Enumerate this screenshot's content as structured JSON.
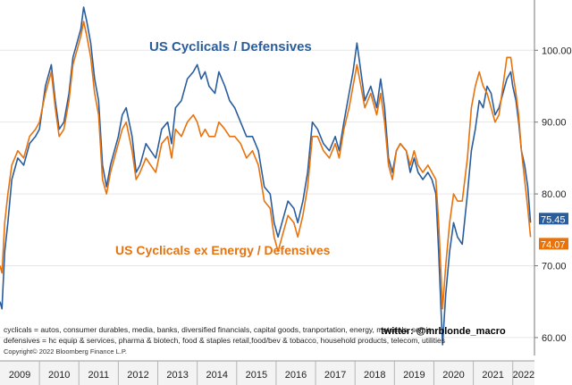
{
  "chart_data": {
    "type": "line",
    "annotation_top": "US Cyclicals / Defensives",
    "annotation_bottom": "US Cyclicals ex Energy / Defensives",
    "x_labels": [
      "2009",
      "2010",
      "2011",
      "2012",
      "2013",
      "2014",
      "2015",
      "2016",
      "2017",
      "2018",
      "2019",
      "2020",
      "2021",
      "2022"
    ],
    "y_ticks": [
      "60.00",
      "70.00",
      "80.00",
      "90.00",
      "100.00"
    ],
    "ylim": [
      57.5,
      107
    ],
    "xlim": [
      2009.0,
      2022.55
    ],
    "series": [
      {
        "name": "US Cyclicals / Defensives",
        "color": "#2a5d9c",
        "last_value_label": "75.45",
        "points": [
          [
            2009.0,
            65
          ],
          [
            2009.05,
            64
          ],
          [
            2009.12,
            72
          ],
          [
            2009.2,
            76
          ],
          [
            2009.3,
            82
          ],
          [
            2009.45,
            85
          ],
          [
            2009.6,
            84
          ],
          [
            2009.75,
            87
          ],
          [
            2009.9,
            88
          ],
          [
            2010.0,
            89
          ],
          [
            2010.15,
            95
          ],
          [
            2010.3,
            98
          ],
          [
            2010.4,
            93
          ],
          [
            2010.5,
            89
          ],
          [
            2010.62,
            90
          ],
          [
            2010.75,
            94
          ],
          [
            2010.85,
            99
          ],
          [
            2010.95,
            101
          ],
          [
            2011.05,
            103
          ],
          [
            2011.12,
            106
          ],
          [
            2011.2,
            104
          ],
          [
            2011.3,
            101
          ],
          [
            2011.4,
            96
          ],
          [
            2011.5,
            93
          ],
          [
            2011.6,
            84
          ],
          [
            2011.7,
            81
          ],
          [
            2011.8,
            84
          ],
          [
            2011.9,
            86
          ],
          [
            2012.0,
            88
          ],
          [
            2012.1,
            91
          ],
          [
            2012.2,
            92
          ],
          [
            2012.35,
            88
          ],
          [
            2012.45,
            83
          ],
          [
            2012.55,
            84
          ],
          [
            2012.7,
            87
          ],
          [
            2012.82,
            86
          ],
          [
            2012.95,
            85
          ],
          [
            2013.1,
            89
          ],
          [
            2013.25,
            90
          ],
          [
            2013.35,
            87
          ],
          [
            2013.45,
            92
          ],
          [
            2013.6,
            93
          ],
          [
            2013.75,
            96
          ],
          [
            2013.9,
            97
          ],
          [
            2014.0,
            98
          ],
          [
            2014.1,
            96
          ],
          [
            2014.2,
            97
          ],
          [
            2014.3,
            95
          ],
          [
            2014.45,
            94
          ],
          [
            2014.55,
            97
          ],
          [
            2014.7,
            95
          ],
          [
            2014.82,
            93
          ],
          [
            2014.95,
            92
          ],
          [
            2015.1,
            90
          ],
          [
            2015.25,
            88
          ],
          [
            2015.4,
            88
          ],
          [
            2015.55,
            86
          ],
          [
            2015.7,
            81
          ],
          [
            2015.85,
            80
          ],
          [
            2015.95,
            76
          ],
          [
            2016.05,
            74
          ],
          [
            2016.15,
            76
          ],
          [
            2016.3,
            79
          ],
          [
            2016.45,
            78
          ],
          [
            2016.55,
            76
          ],
          [
            2016.68,
            79
          ],
          [
            2016.8,
            83
          ],
          [
            2016.92,
            90
          ],
          [
            2017.05,
            89
          ],
          [
            2017.2,
            87
          ],
          [
            2017.35,
            86
          ],
          [
            2017.5,
            88
          ],
          [
            2017.6,
            86
          ],
          [
            2017.72,
            90
          ],
          [
            2017.85,
            94
          ],
          [
            2017.95,
            97
          ],
          [
            2018.05,
            101
          ],
          [
            2018.15,
            97
          ],
          [
            2018.25,
            93
          ],
          [
            2018.4,
            95
          ],
          [
            2018.55,
            92
          ],
          [
            2018.65,
            96
          ],
          [
            2018.75,
            92
          ],
          [
            2018.85,
            85
          ],
          [
            2018.95,
            83
          ],
          [
            2019.05,
            86
          ],
          [
            2019.15,
            87
          ],
          [
            2019.3,
            86
          ],
          [
            2019.4,
            83
          ],
          [
            2019.5,
            85
          ],
          [
            2019.6,
            83
          ],
          [
            2019.72,
            82
          ],
          [
            2019.85,
            83
          ],
          [
            2019.95,
            82
          ],
          [
            2020.05,
            80
          ],
          [
            2020.12,
            72
          ],
          [
            2020.18,
            64
          ],
          [
            2020.22,
            59
          ],
          [
            2020.3,
            66
          ],
          [
            2020.4,
            72
          ],
          [
            2020.5,
            76
          ],
          [
            2020.6,
            74
          ],
          [
            2020.72,
            73
          ],
          [
            2020.85,
            80
          ],
          [
            2020.95,
            86
          ],
          [
            2021.05,
            89
          ],
          [
            2021.15,
            93
          ],
          [
            2021.25,
            92
          ],
          [
            2021.35,
            95
          ],
          [
            2021.45,
            94
          ],
          [
            2021.55,
            91
          ],
          [
            2021.65,
            92
          ],
          [
            2021.75,
            94
          ],
          [
            2021.85,
            96
          ],
          [
            2021.95,
            97
          ],
          [
            2022.0,
            95
          ],
          [
            2022.08,
            93
          ],
          [
            2022.15,
            90
          ],
          [
            2022.22,
            86
          ],
          [
            2022.3,
            84
          ],
          [
            2022.38,
            81
          ],
          [
            2022.45,
            76
          ]
        ]
      },
      {
        "name": "US Cyclicals ex Energy / Defensives",
        "color": "#e8720c",
        "last_value_label": "74.07",
        "points": [
          [
            2009.0,
            70
          ],
          [
            2009.05,
            69
          ],
          [
            2009.12,
            76
          ],
          [
            2009.2,
            80
          ],
          [
            2009.3,
            84
          ],
          [
            2009.45,
            86
          ],
          [
            2009.6,
            85
          ],
          [
            2009.75,
            88
          ],
          [
            2009.9,
            89
          ],
          [
            2010.0,
            90
          ],
          [
            2010.15,
            94
          ],
          [
            2010.3,
            97
          ],
          [
            2010.4,
            92
          ],
          [
            2010.5,
            88
          ],
          [
            2010.62,
            89
          ],
          [
            2010.75,
            93
          ],
          [
            2010.85,
            98
          ],
          [
            2010.95,
            100
          ],
          [
            2011.05,
            102
          ],
          [
            2011.12,
            104
          ],
          [
            2011.2,
            102
          ],
          [
            2011.3,
            99
          ],
          [
            2011.4,
            94
          ],
          [
            2011.5,
            91
          ],
          [
            2011.6,
            82
          ],
          [
            2011.7,
            80
          ],
          [
            2011.8,
            83
          ],
          [
            2011.9,
            85
          ],
          [
            2012.0,
            87
          ],
          [
            2012.1,
            89
          ],
          [
            2012.2,
            90
          ],
          [
            2012.35,
            86
          ],
          [
            2012.45,
            82
          ],
          [
            2012.55,
            83
          ],
          [
            2012.7,
            85
          ],
          [
            2012.82,
            84
          ],
          [
            2012.95,
            83
          ],
          [
            2013.1,
            87
          ],
          [
            2013.25,
            88
          ],
          [
            2013.35,
            85
          ],
          [
            2013.45,
            89
          ],
          [
            2013.6,
            88
          ],
          [
            2013.75,
            90
          ],
          [
            2013.9,
            91
          ],
          [
            2014.0,
            90
          ],
          [
            2014.1,
            88
          ],
          [
            2014.2,
            89
          ],
          [
            2014.3,
            88
          ],
          [
            2014.45,
            88
          ],
          [
            2014.55,
            90
          ],
          [
            2014.7,
            89
          ],
          [
            2014.82,
            88
          ],
          [
            2014.95,
            88
          ],
          [
            2015.1,
            87
          ],
          [
            2015.25,
            85
          ],
          [
            2015.4,
            86
          ],
          [
            2015.55,
            84
          ],
          [
            2015.7,
            79
          ],
          [
            2015.85,
            78
          ],
          [
            2015.95,
            74
          ],
          [
            2016.05,
            72
          ],
          [
            2016.15,
            74
          ],
          [
            2016.3,
            77
          ],
          [
            2016.45,
            76
          ],
          [
            2016.55,
            74
          ],
          [
            2016.68,
            77
          ],
          [
            2016.8,
            81
          ],
          [
            2016.92,
            88
          ],
          [
            2017.05,
            88
          ],
          [
            2017.2,
            86
          ],
          [
            2017.35,
            85
          ],
          [
            2017.5,
            87
          ],
          [
            2017.6,
            85
          ],
          [
            2017.72,
            89
          ],
          [
            2017.85,
            92
          ],
          [
            2017.95,
            95
          ],
          [
            2018.05,
            98
          ],
          [
            2018.15,
            95
          ],
          [
            2018.25,
            92
          ],
          [
            2018.4,
            94
          ],
          [
            2018.55,
            91
          ],
          [
            2018.65,
            94
          ],
          [
            2018.75,
            90
          ],
          [
            2018.85,
            84
          ],
          [
            2018.95,
            82
          ],
          [
            2019.05,
            86
          ],
          [
            2019.15,
            87
          ],
          [
            2019.3,
            86
          ],
          [
            2019.4,
            84
          ],
          [
            2019.5,
            86
          ],
          [
            2019.6,
            84
          ],
          [
            2019.72,
            83
          ],
          [
            2019.85,
            84
          ],
          [
            2019.95,
            83
          ],
          [
            2020.05,
            82
          ],
          [
            2020.12,
            76
          ],
          [
            2020.18,
            69
          ],
          [
            2020.22,
            64
          ],
          [
            2020.3,
            70
          ],
          [
            2020.4,
            76
          ],
          [
            2020.5,
            80
          ],
          [
            2020.6,
            79
          ],
          [
            2020.72,
            79
          ],
          [
            2020.85,
            85
          ],
          [
            2020.95,
            92
          ],
          [
            2021.05,
            95
          ],
          [
            2021.15,
            97
          ],
          [
            2021.25,
            95
          ],
          [
            2021.35,
            94
          ],
          [
            2021.45,
            92
          ],
          [
            2021.55,
            90
          ],
          [
            2021.65,
            91
          ],
          [
            2021.75,
            95
          ],
          [
            2021.85,
            99
          ],
          [
            2021.95,
            99
          ],
          [
            2022.0,
            97
          ],
          [
            2022.08,
            94
          ],
          [
            2022.15,
            91
          ],
          [
            2022.22,
            86
          ],
          [
            2022.3,
            82
          ],
          [
            2022.38,
            78
          ],
          [
            2022.45,
            74
          ]
        ]
      }
    ]
  },
  "footer": {
    "cyclicals": "cyclicals = autos, consumer durables, media, banks, diversified financials, capital goods, tranportation, energy, materials, semis",
    "defensives": "defensives = hc equip & services, pharma & biotech, food & staples retail,food/bev & tobacco, household products, telecom, utilities",
    "copyright": "Copyright© 2022 Bloomberg Finance L.P.",
    "twitter": "twitter: @mrblonde_macro"
  }
}
